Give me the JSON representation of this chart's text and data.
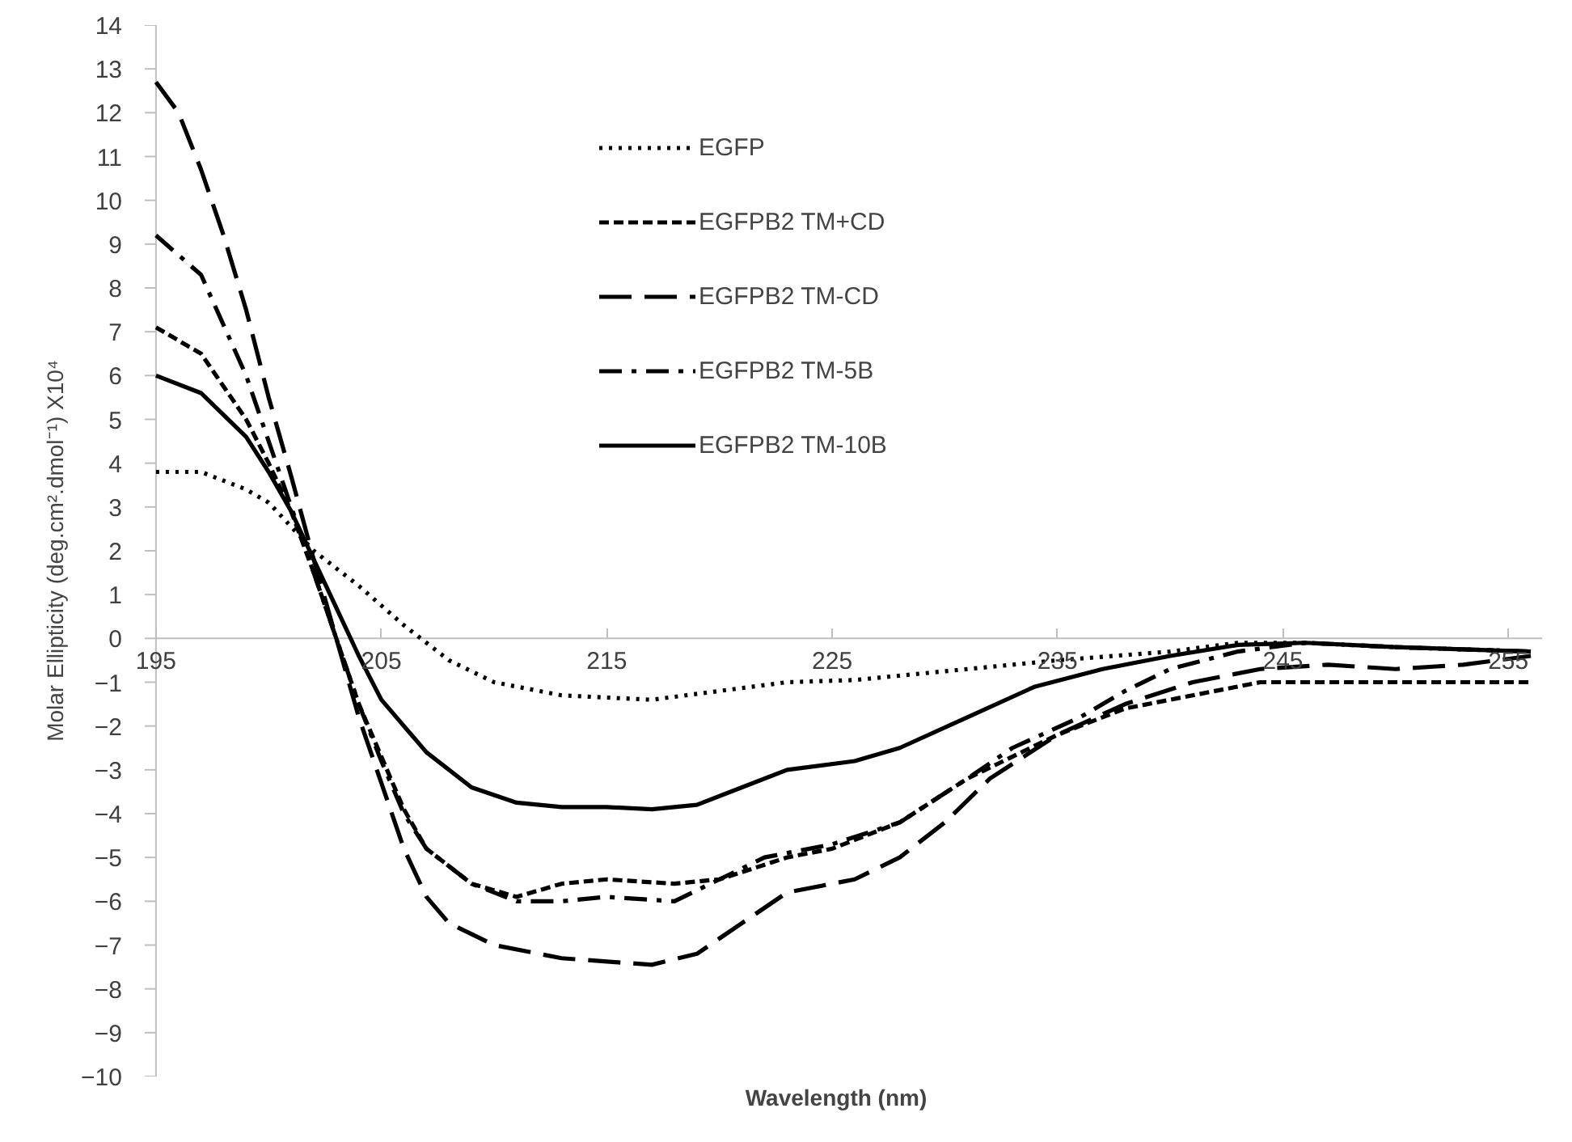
{
  "chart_data": {
    "type": "line",
    "xlabel": "Wavelength (nm)",
    "ylabel": "Molar Ellipticity (deg.cm².dmol⁻¹) X10⁴",
    "xlim": [
      195,
      256.5
    ],
    "xticks": [
      195,
      205,
      215,
      225,
      235,
      245,
      255
    ],
    "ylim": [
      -10,
      14
    ],
    "yticks": [
      -10,
      -9,
      -8,
      -7,
      -6,
      -5,
      -4,
      -3,
      -2,
      -1,
      0,
      1,
      2,
      3,
      4,
      5,
      6,
      7,
      8,
      9,
      10,
      11,
      12,
      13,
      14
    ],
    "grid": false,
    "legend": "top",
    "marker": "none",
    "series": [
      {
        "name": "EGFP",
        "color": "#000000",
        "line_style": "dotted",
        "x": [
          195,
          197,
          199,
          200,
          202,
          204,
          206,
          208,
          210,
          213,
          217,
          220,
          223,
          226,
          230,
          235,
          240,
          243,
          246,
          250,
          256
        ],
        "values": [
          3.8,
          3.8,
          3.4,
          3.1,
          2.0,
          1.2,
          0.3,
          -0.5,
          -1.0,
          -1.3,
          -1.4,
          -1.2,
          -1.0,
          -0.95,
          -0.75,
          -0.5,
          -0.3,
          -0.1,
          -0.1,
          -0.2,
          -0.3
        ]
      },
      {
        "name": "EGFPB2 TM+CD",
        "color": "#000000",
        "line_style": "dashed",
        "x": [
          195,
          197,
          199,
          200,
          201,
          202,
          203,
          204,
          205,
          206,
          207,
          209,
          211,
          213,
          215,
          218,
          220,
          223,
          225,
          228,
          231,
          235,
          238,
          241,
          244,
          248,
          252,
          256
        ],
        "values": [
          7.1,
          6.5,
          5.0,
          4.0,
          2.9,
          1.5,
          0,
          -1.5,
          -2.7,
          -3.9,
          -4.8,
          -5.6,
          -5.9,
          -5.6,
          -5.5,
          -5.6,
          -5.5,
          -5.0,
          -4.8,
          -4.2,
          -3.2,
          -2.2,
          -1.6,
          -1.3,
          -1.0,
          -1.0,
          -1.0,
          -1.0
        ]
      },
      {
        "name": "EGFPB2 TM-CD",
        "color": "#000000",
        "line_style": "longdash",
        "x": [
          195,
          196,
          197,
          198,
          199,
          200,
          201,
          202,
          203,
          204,
          205,
          206,
          207,
          208,
          210,
          213,
          217,
          219,
          221,
          223,
          226,
          228,
          230,
          232,
          235,
          238,
          241,
          244,
          247,
          250,
          253,
          256
        ],
        "values": [
          12.7,
          12.0,
          10.7,
          9.2,
          7.5,
          5.5,
          3.7,
          1.8,
          0,
          -1.8,
          -3.3,
          -4.8,
          -5.9,
          -6.5,
          -7.0,
          -7.3,
          -7.45,
          -7.2,
          -6.5,
          -5.8,
          -5.5,
          -5.0,
          -4.2,
          -3.2,
          -2.2,
          -1.5,
          -1.0,
          -0.7,
          -0.6,
          -0.7,
          -0.6,
          -0.4
        ]
      },
      {
        "name": "EGFPB2 TM-5B",
        "color": "#000000",
        "line_style": "dashdot",
        "x": [
          195,
          197,
          199,
          200,
          201,
          202,
          203,
          204,
          205,
          206,
          207,
          209,
          211,
          213,
          215,
          218,
          220,
          222,
          225,
          228,
          231,
          233,
          236,
          238,
          240,
          243,
          246,
          250,
          256
        ],
        "values": [
          9.2,
          8.3,
          6.0,
          4.5,
          3.0,
          1.5,
          0,
          -1.5,
          -2.8,
          -4.0,
          -4.8,
          -5.6,
          -6.0,
          -6.0,
          -5.9,
          -6.0,
          -5.5,
          -5.0,
          -4.7,
          -4.2,
          -3.2,
          -2.5,
          -1.8,
          -1.2,
          -0.7,
          -0.3,
          -0.1,
          -0.2,
          -0.3
        ]
      },
      {
        "name": "EGFPB2 TM-10B",
        "color": "#000000",
        "line_style": "solid",
        "x": [
          195,
          197,
          199,
          200,
          201,
          202,
          203,
          204,
          205,
          207,
          209,
          211,
          213,
          215,
          217,
          219,
          221,
          223,
          226,
          228,
          231,
          234,
          237,
          240,
          243,
          246,
          250,
          256
        ],
        "values": [
          6.0,
          5.6,
          4.6,
          3.8,
          2.9,
          1.8,
          0.7,
          -0.4,
          -1.4,
          -2.6,
          -3.4,
          -3.75,
          -3.85,
          -3.85,
          -3.9,
          -3.8,
          -3.4,
          -3.0,
          -2.8,
          -2.5,
          -1.8,
          -1.1,
          -0.7,
          -0.4,
          -0.15,
          -0.1,
          -0.2,
          -0.3
        ]
      }
    ]
  }
}
